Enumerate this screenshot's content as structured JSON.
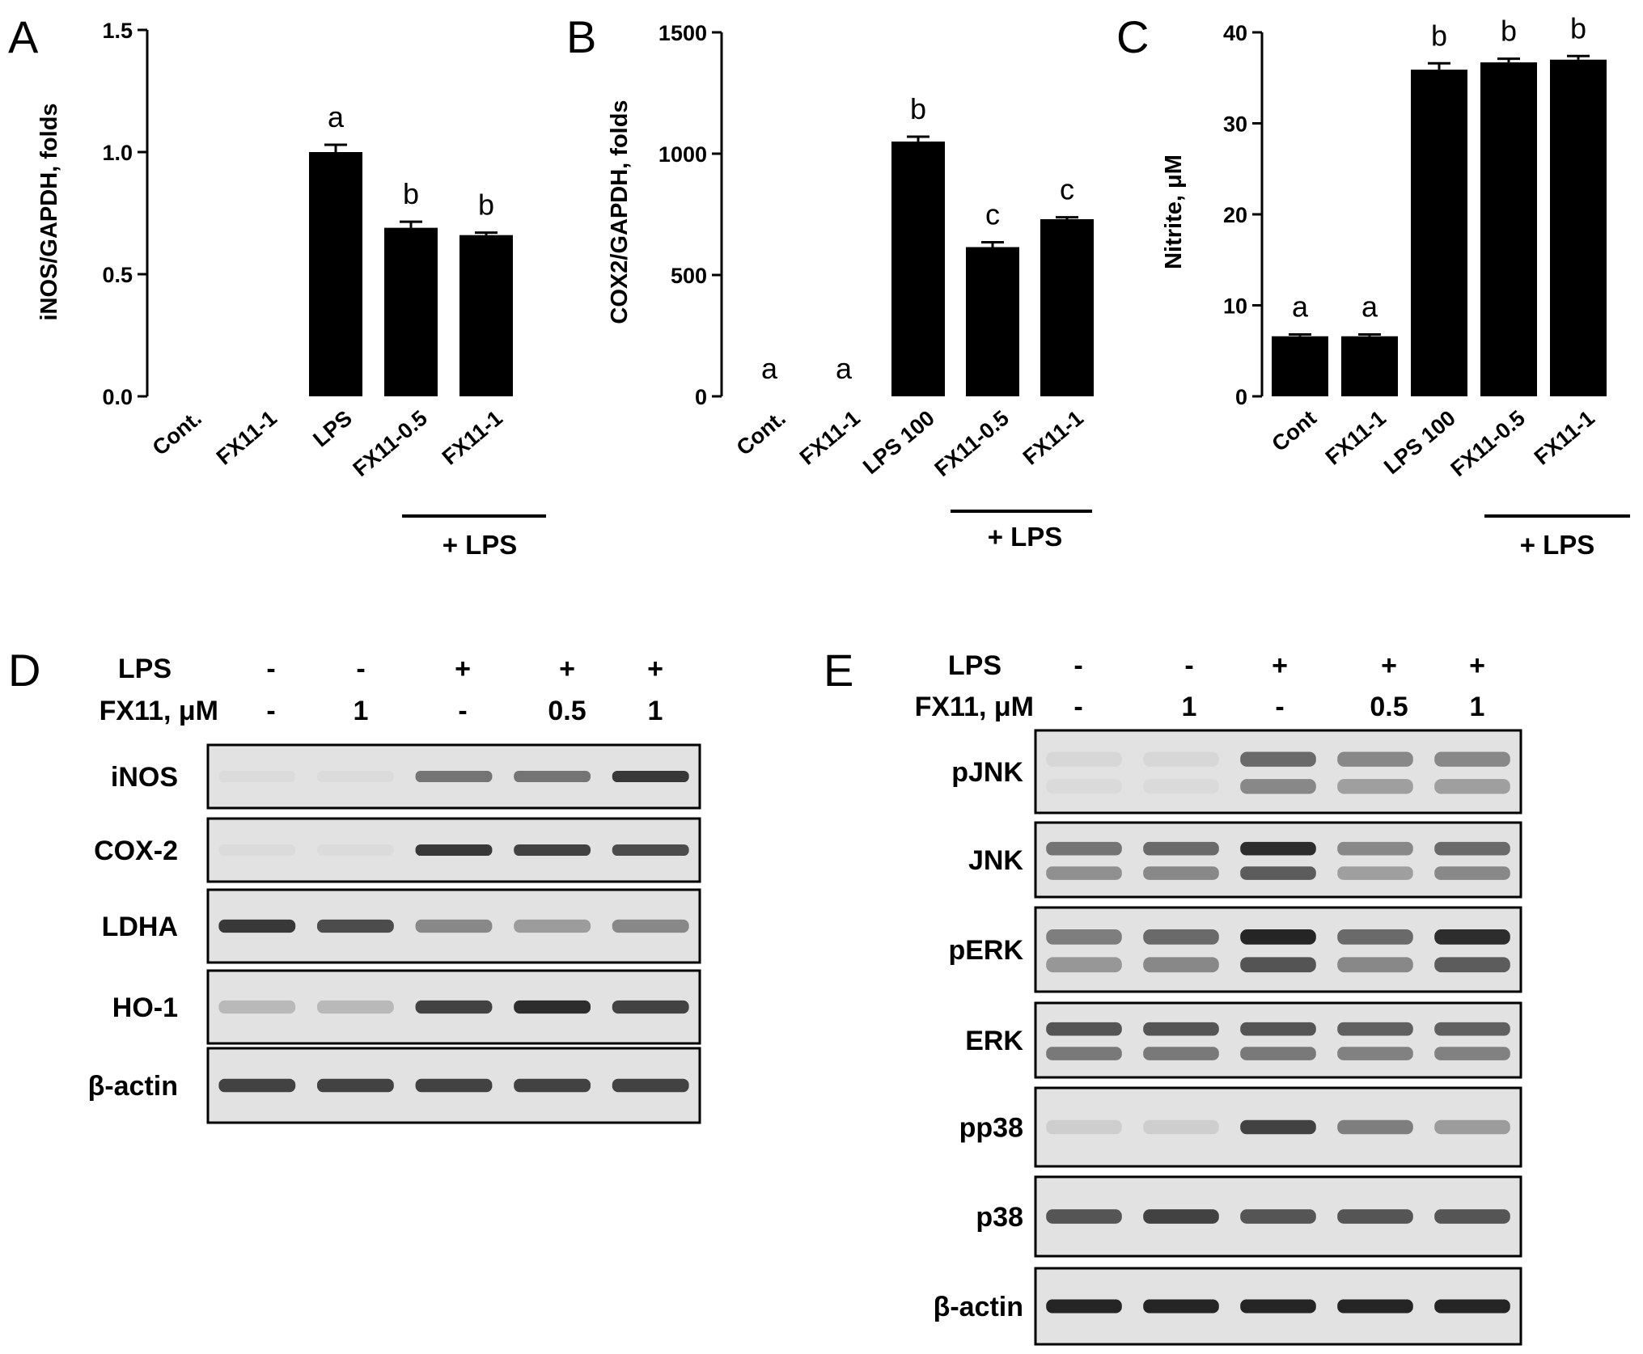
{
  "panels_charts": [
    {
      "letter": "A",
      "chart_data": {
        "type": "bar",
        "ylabel": "iNOS/GAPDH, folds",
        "ylim": [
          0,
          1.5
        ],
        "yticks": [
          "0.0",
          "0.5",
          "1.0",
          "1.5"
        ],
        "ytick_values": [
          0,
          0.5,
          1.0,
          1.5
        ],
        "categories": [
          "Cont.",
          "FX11-1",
          "LPS",
          "FX11-0.5",
          "FX11-1"
        ],
        "values": [
          0,
          0,
          1.0,
          0.69,
          0.66
        ],
        "errors": [
          0,
          0,
          0.03,
          0.025,
          0.01
        ],
        "significance": [
          "",
          "",
          "a",
          "b",
          "b"
        ],
        "group_label": "+ LPS",
        "group_span": [
          3,
          4
        ]
      }
    },
    {
      "letter": "B",
      "chart_data": {
        "type": "bar",
        "ylabel": "COX2/GAPDH, folds",
        "ylim": [
          0,
          1500
        ],
        "yticks": [
          "0",
          "500",
          "1000",
          "1500"
        ],
        "ytick_values": [
          0,
          500,
          1000,
          1500
        ],
        "categories": [
          "Cont.",
          "FX11-1",
          "LPS 100",
          "FX11-0.5",
          "FX11-1"
        ],
        "values": [
          0,
          0,
          1050,
          615,
          730
        ],
        "errors": [
          0,
          0,
          20,
          20,
          8
        ],
        "significance": [
          "a",
          "a",
          "b",
          "c",
          "c"
        ],
        "group_label": "+ LPS",
        "group_span": [
          3,
          4
        ]
      }
    },
    {
      "letter": "C",
      "chart_data": {
        "type": "bar",
        "ylabel": "Nitrite, μM",
        "ylim": [
          0,
          40
        ],
        "yticks": [
          "0",
          "10",
          "20",
          "30",
          "40"
        ],
        "ytick_values": [
          0,
          10,
          20,
          30,
          40
        ],
        "categories": [
          "Cont",
          "FX11-1",
          "LPS 100",
          "FX11-0.5",
          "FX11-1"
        ],
        "values": [
          6.6,
          6.6,
          35.9,
          36.7,
          37.0
        ],
        "errors": [
          0.2,
          0.2,
          0.7,
          0.4,
          0.4
        ],
        "significance": [
          "a",
          "a",
          "b",
          "b",
          "b"
        ],
        "group_label": "+ LPS",
        "group_span": [
          3,
          4
        ]
      }
    }
  ],
  "blot_D": {
    "letter": "D",
    "head_lps": "LPS",
    "head_fx": "FX11, μM",
    "lps_values": [
      "-",
      "-",
      "+",
      "+",
      "+"
    ],
    "fx_values": [
      "-",
      "1",
      "-",
      "0.5",
      "1"
    ],
    "rows": [
      {
        "label": "iNOS",
        "intensity": [
          0.02,
          0.03,
          0.55,
          0.55,
          0.85
        ],
        "band_count": 1
      },
      {
        "label": "COX-2",
        "intensity": [
          0.02,
          0.02,
          0.85,
          0.8,
          0.75
        ],
        "band_count": 1
      },
      {
        "label": "LDHA",
        "intensity": [
          0.85,
          0.75,
          0.45,
          0.35,
          0.45
        ],
        "band_count": 1
      },
      {
        "label": "HO-1",
        "intensity": [
          0.2,
          0.2,
          0.8,
          0.9,
          0.8
        ],
        "band_count": 1
      },
      {
        "label": "β-actin",
        "intensity": [
          0.8,
          0.8,
          0.8,
          0.8,
          0.8
        ],
        "band_count": 1
      }
    ]
  },
  "blot_E": {
    "letter": "E",
    "head_lps": "LPS",
    "head_fx": "FX11, μM",
    "lps_values": [
      "-",
      "-",
      "+",
      "+",
      "+"
    ],
    "fx_values": [
      "-",
      "1",
      "-",
      "0.5",
      "1"
    ],
    "rows": [
      {
        "label": "pJNK",
        "intensity": [
          0.05,
          0.05,
          0.6,
          0.45,
          0.45
        ],
        "band_count": 2
      },
      {
        "label": "JNK",
        "intensity": [
          0.55,
          0.6,
          0.9,
          0.45,
          0.6
        ],
        "band_count": 2
      },
      {
        "label": "pERK",
        "intensity": [
          0.5,
          0.6,
          0.95,
          0.6,
          0.9
        ],
        "band_count": 2
      },
      {
        "label": "ERK",
        "intensity": [
          0.7,
          0.7,
          0.7,
          0.65,
          0.65
        ],
        "band_count": 2
      },
      {
        "label": "pp38",
        "intensity": [
          0.1,
          0.1,
          0.8,
          0.5,
          0.35
        ],
        "band_count": 1
      },
      {
        "label": "p38",
        "intensity": [
          0.7,
          0.8,
          0.7,
          0.7,
          0.7
        ],
        "band_count": 1
      },
      {
        "label": "β-actin",
        "intensity": [
          0.95,
          0.95,
          0.95,
          0.95,
          0.95
        ],
        "band_count": 1
      }
    ]
  }
}
